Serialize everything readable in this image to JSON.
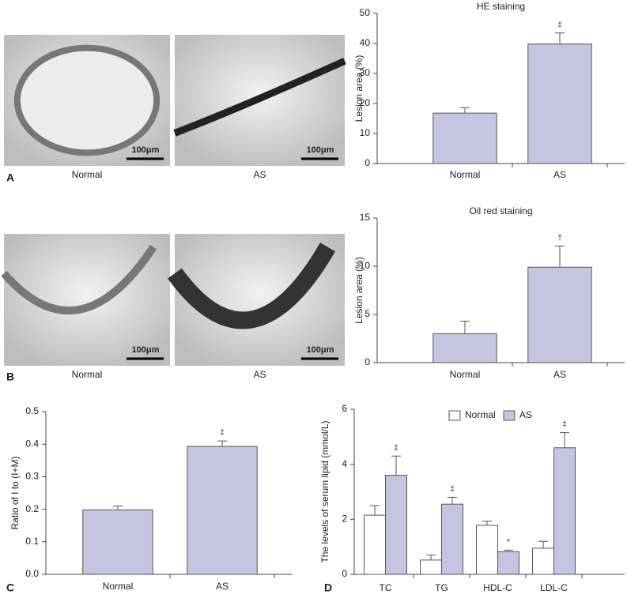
{
  "figure_panels": [
    {
      "letter": "A",
      "images": [
        {
          "label": "Normal",
          "scale_bar": "100μm"
        },
        {
          "label": "AS",
          "scale_bar": "100μm"
        }
      ]
    },
    {
      "letter": "B",
      "images": [
        {
          "label": "Normal",
          "scale_bar": "100μm"
        },
        {
          "label": "AS",
          "scale_bar": "100μm"
        }
      ]
    },
    {
      "letter": "C"
    },
    {
      "letter": "D"
    }
  ],
  "chart_data": [
    {
      "type": "bar",
      "title": "HE staining",
      "y_label": "Lesion area (%)",
      "categories": [
        "Normal",
        "AS"
      ],
      "values": [
        16.8,
        39.8
      ],
      "errors": [
        1.8,
        3.7
      ],
      "significance": [
        null,
        "‡"
      ],
      "color": "#c6c4e1",
      "ylim": [
        0,
        50
      ],
      "yticks": [
        0,
        10,
        20,
        30,
        40,
        50
      ]
    },
    {
      "type": "bar",
      "title": "Oil red staining",
      "y_label": "Lesion area (%)",
      "categories": [
        "Normal",
        "AS"
      ],
      "values": [
        3.0,
        9.9
      ],
      "errors": [
        1.3,
        2.2
      ],
      "significance": [
        null,
        "†"
      ],
      "color": "#c6c4e1",
      "ylim": [
        0,
        15
      ],
      "yticks": [
        0,
        5,
        10,
        15
      ]
    },
    {
      "type": "bar",
      "y_label": "Ratio of I to (I+M)",
      "categories": [
        "Normal",
        "AS"
      ],
      "values": [
        0.198,
        0.393
      ],
      "errors": [
        0.012,
        0.017
      ],
      "significance": [
        null,
        "‡"
      ],
      "color": "#c6c4e1",
      "ylim": [
        0,
        0.5
      ],
      "yticks": [
        {
          "value": 0,
          "label": "0.0"
        },
        0.1,
        0.2,
        0.3,
        0.4,
        0.5
      ]
    },
    {
      "type": "bar",
      "y_label": "The levels of serum lipid (mmol/L)",
      "categories": [
        "TC",
        "TG",
        "HDL-C",
        "LDL-C"
      ],
      "series": [
        {
          "name": "Normal",
          "color": "#ffffff",
          "values": [
            2.15,
            0.52,
            1.78,
            0.95
          ],
          "errors": [
            0.35,
            0.18,
            0.15,
            0.25
          ]
        },
        {
          "name": "AS",
          "color": "#c6c4e1",
          "values": [
            3.6,
            2.55,
            0.82,
            4.6
          ],
          "errors": [
            0.7,
            0.25,
            0.06,
            0.55
          ],
          "significance": [
            "‡",
            "‡",
            "*",
            "‡"
          ]
        }
      ],
      "ylim": [
        0,
        6
      ],
      "yticks": [
        0,
        2,
        4,
        6
      ],
      "legend": "top"
    }
  ]
}
